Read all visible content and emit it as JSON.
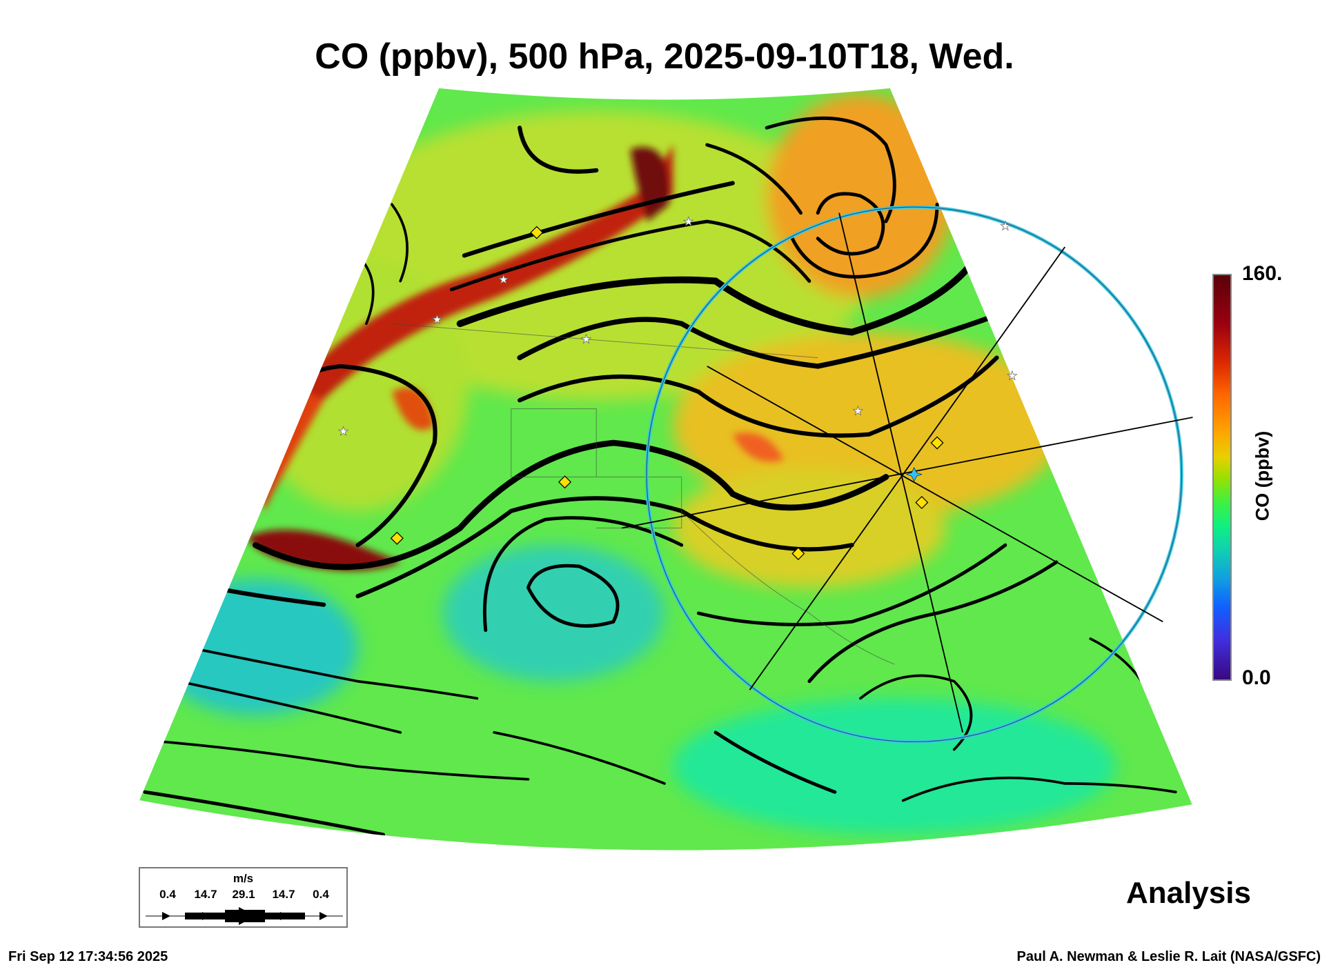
{
  "title": "CO (ppbv), 500 hPa, 2025-09-10T18, Wed.",
  "colorbar": {
    "max_label": "160.",
    "min_label": "0.0",
    "label": "CO (ppbv)",
    "range": [
      0,
      160
    ]
  },
  "wind_legend": {
    "unit": "m/s",
    "values": [
      "0.4",
      "14.7",
      "29.1",
      "14.7",
      "0.4"
    ]
  },
  "product_label": "Analysis",
  "footer": {
    "timestamp": "Fri Sep 12 17:34:56 2025",
    "credit": "Paul A. Newman & Leslie R. Lait (NASA/GSFC)"
  },
  "colors": {
    "background_field": "#5ee84a",
    "plume": "#8a0a0a",
    "ring": "#3cc8e0",
    "marker_diamond": "#ffe000"
  }
}
